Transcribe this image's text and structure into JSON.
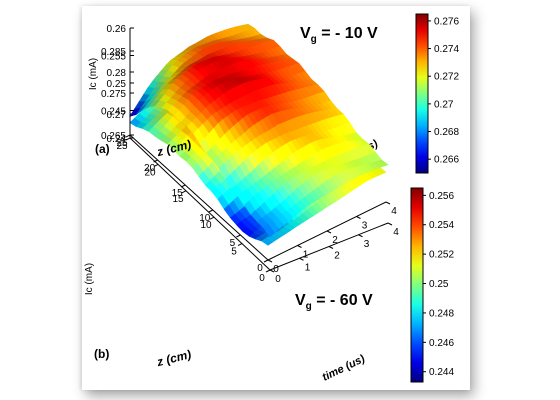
{
  "chart_data": [
    {
      "type": "surface",
      "panel_label": "(a)",
      "annotation_main": "V",
      "annotation_sub": "g",
      "annotation_value": " = - 10 V",
      "xlabel": "time (us)",
      "ylabel": "z (cm)",
      "zlabel": "Ic (mA)",
      "xlim": [
        0,
        4
      ],
      "ylim": [
        0,
        25
      ],
      "zlim": [
        0.265,
        0.285
      ],
      "x_ticks": [
        "0",
        "1",
        "2",
        "3",
        "4"
      ],
      "y_ticks": [
        "0",
        "5",
        "10",
        "15",
        "20",
        "25"
      ],
      "z_ticks": [
        "0.265",
        "0.27",
        "0.275",
        "0.28",
        "0.285"
      ],
      "colorbar": {
        "min": 0.265,
        "max": 0.2765,
        "ticks": [
          "0.266",
          "0.268",
          "0.27",
          "0.272",
          "0.274",
          "0.276"
        ],
        "tick_values": [
          0.266,
          0.268,
          0.27,
          0.272,
          0.274,
          0.276
        ]
      },
      "grid": false,
      "z_grid": [
        [
          0.2685,
          0.269,
          0.27,
          0.271,
          0.2715,
          0.272,
          0.272
        ],
        [
          0.266,
          0.2672,
          0.27,
          0.272,
          0.2725,
          0.273,
          0.2725
        ],
        [
          0.269,
          0.271,
          0.2735,
          0.274,
          0.274,
          0.2735,
          0.273
        ],
        [
          0.271,
          0.2735,
          0.2755,
          0.276,
          0.275,
          0.274,
          0.2735
        ],
        [
          0.2705,
          0.273,
          0.275,
          0.2755,
          0.2745,
          0.274,
          0.273
        ],
        [
          0.268,
          0.27,
          0.272,
          0.273,
          0.273,
          0.2725,
          0.272
        ]
      ]
    },
    {
      "type": "surface",
      "panel_label": "(b)",
      "annotation_main": "V",
      "annotation_sub": "g",
      "annotation_value": " = - 60 V",
      "xlabel": "time (us)",
      "ylabel": "z (cm)",
      "zlabel": "Ic (mA)",
      "xlim": [
        0,
        4
      ],
      "ylim": [
        0,
        25
      ],
      "zlim": [
        0.24,
        0.26
      ],
      "x_ticks": [
        "0",
        "1",
        "2",
        "3",
        "4"
      ],
      "y_ticks": [
        "0",
        "5",
        "10",
        "15",
        "20",
        "25"
      ],
      "z_ticks": [
        "0.24",
        "0.245",
        "0.25",
        "0.255",
        "0.26"
      ],
      "colorbar": {
        "min": 0.2433,
        "max": 0.2565,
        "ticks": [
          "0.244",
          "0.246",
          "0.248",
          "0.25",
          "0.252",
          "0.254",
          "0.256"
        ],
        "tick_values": [
          0.244,
          0.246,
          0.248,
          0.25,
          0.252,
          0.254,
          0.256
        ]
      },
      "grid": false,
      "z_grid": [
        [
          0.246,
          0.2475,
          0.249,
          0.25,
          0.2505,
          0.2505,
          0.2505
        ],
        [
          0.2475,
          0.249,
          0.2505,
          0.2515,
          0.252,
          0.2515,
          0.251
        ],
        [
          0.25,
          0.252,
          0.2535,
          0.254,
          0.2535,
          0.253,
          0.2525
        ],
        [
          0.252,
          0.2545,
          0.2555,
          0.2555,
          0.255,
          0.254,
          0.2535
        ],
        [
          0.251,
          0.2535,
          0.255,
          0.2552,
          0.2545,
          0.254,
          0.2535
        ],
        [
          0.244,
          0.248,
          0.251,
          0.2525,
          0.253,
          0.2525,
          0.252
        ]
      ]
    }
  ]
}
